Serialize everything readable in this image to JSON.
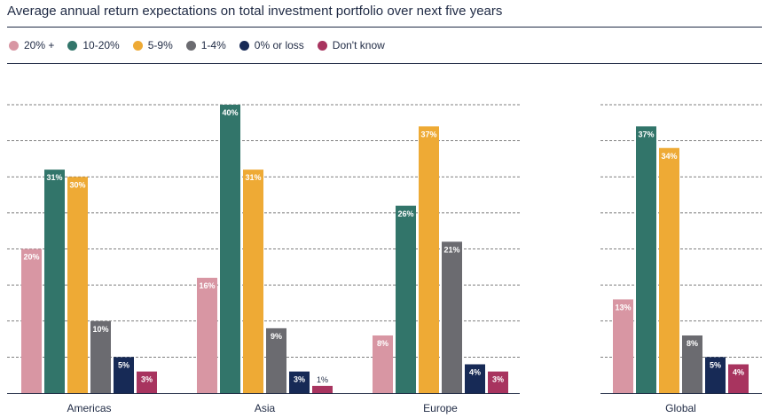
{
  "chart_data": {
    "type": "bar",
    "title": "Average annual return expectations on total investment portfolio over next five years",
    "legend_position": "top-left",
    "grid": true,
    "ylim": [
      0,
      40
    ],
    "categories": [
      "Americas",
      "Asia",
      "Europe",
      "Global"
    ],
    "series": [
      {
        "name": "20% +",
        "color": "#d896a3",
        "values": [
          20,
          16,
          8,
          13
        ],
        "labels": [
          "20%",
          "16%",
          "8%",
          "13%"
        ]
      },
      {
        "name": "10-20%",
        "color": "#32756a",
        "values": [
          31,
          40,
          26,
          37
        ],
        "labels": [
          "31%",
          "40%",
          "26%",
          "37%"
        ]
      },
      {
        "name": "5-9%",
        "color": "#eeaa35",
        "values": [
          30,
          31,
          37,
          34
        ],
        "labels": [
          "30%",
          "31%",
          "37%",
          "34%"
        ]
      },
      {
        "name": "1-4%",
        "color": "#6b6b70",
        "values": [
          10,
          9,
          21,
          8
        ],
        "labels": [
          "10%",
          "9%",
          "21%",
          "8%"
        ]
      },
      {
        "name": "0% or loss",
        "color": "#172a56",
        "values": [
          5,
          3,
          4,
          5
        ],
        "labels": [
          "5%",
          "3%",
          "4%",
          "5%"
        ]
      },
      {
        "name": "Don't know",
        "color": "#a8345f",
        "values": [
          3,
          1,
          3,
          4
        ],
        "labels": [
          "3%",
          "1%",
          "3%",
          "4%"
        ]
      }
    ]
  }
}
